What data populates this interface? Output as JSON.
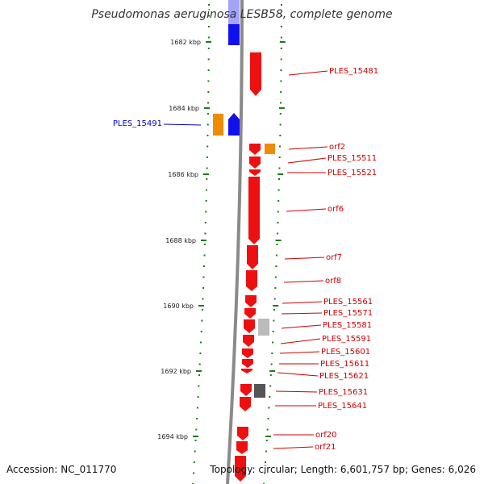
{
  "title": "Pseudomonas aeruginosa LESB58, complete genome",
  "footer": {
    "accession": "Accession: NC_011770",
    "summary": "Topology: circular; Length: 6,601,757 bp; Genes: 6,026"
  },
  "colors": {
    "forward_gene": "#1010ee",
    "reverse_gene": "#ee1010",
    "orange_gene": "#f08a00",
    "grey_gene": "#bbbbbb",
    "dark_gene": "#555555",
    "backbone": "#8a8a8a",
    "tick": "#1a7a1a",
    "label_red": "#cc0000",
    "label_blue": "#0000cc"
  },
  "ticks": [
    {
      "label": "1682 kbp"
    },
    {
      "label": "1684 kbp"
    },
    {
      "label": "1686 kbp"
    },
    {
      "label": "1688 kbp"
    },
    {
      "label": "1690 kbp"
    },
    {
      "label": "1692 kbp"
    },
    {
      "label": "1694 kbp"
    }
  ],
  "genes_right": [
    {
      "label": "PLES_15481"
    },
    {
      "label": "orf2"
    },
    {
      "label": "PLES_15511"
    },
    {
      "label": "PLES_15521"
    },
    {
      "label": "orf6"
    },
    {
      "label": "orf7"
    },
    {
      "label": "orf8"
    },
    {
      "label": "PLES_15561"
    },
    {
      "label": "PLES_15571"
    },
    {
      "label": "PLES_15581"
    },
    {
      "label": "PLES_15591"
    },
    {
      "label": "PLES_15601"
    },
    {
      "label": "PLES_15611"
    },
    {
      "label": "PLES_15621"
    },
    {
      "label": "PLES_15631"
    },
    {
      "label": "PLES_15641"
    },
    {
      "label": "orf20"
    },
    {
      "label": "orf21"
    }
  ],
  "genes_left": [
    {
      "label": "PLES_15491"
    }
  ]
}
